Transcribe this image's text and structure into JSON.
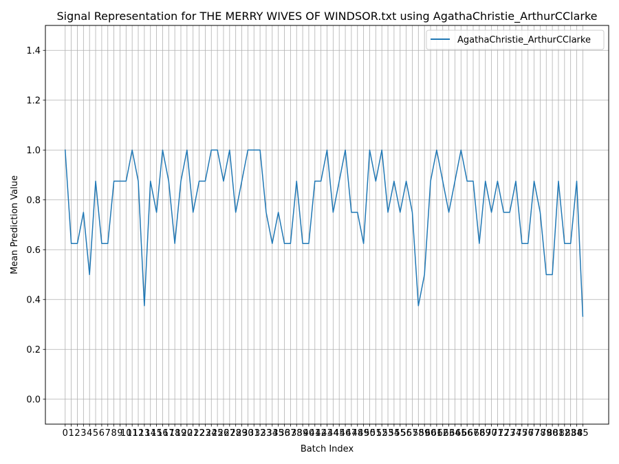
{
  "chart_data": {
    "type": "line",
    "title": "Signal Representation for THE MERRY WIVES OF WINDSOR.txt using AgathaChristie_ArthurCClarke",
    "xlabel": "Batch Index",
    "ylabel": "Mean Prediction Value",
    "xlim": [
      -3.25,
      89.25
    ],
    "ylim": [
      -0.1,
      1.5
    ],
    "yticks": [
      0.0,
      0.2,
      0.4,
      0.6,
      0.8,
      1.0,
      1.2,
      1.4
    ],
    "ytick_labels": [
      "0.0",
      "0.2",
      "0.4",
      "0.6",
      "0.8",
      "1.0",
      "1.2",
      "1.4"
    ],
    "grid": true,
    "legend_position": "upper-right",
    "series": [
      {
        "name": "AgathaChristie_ArthurCClarke",
        "color": "#1f77b4",
        "x": [
          0,
          1,
          2,
          3,
          4,
          5,
          6,
          7,
          8,
          9,
          10,
          11,
          12,
          13,
          14,
          15,
          16,
          17,
          18,
          19,
          20,
          21,
          22,
          23,
          24,
          25,
          26,
          27,
          28,
          29,
          30,
          31,
          32,
          33,
          34,
          35,
          36,
          37,
          38,
          39,
          40,
          41,
          42,
          43,
          44,
          45,
          46,
          47,
          48,
          49,
          50,
          51,
          52,
          53,
          54,
          55,
          56,
          57,
          58,
          59,
          60,
          61,
          62,
          63,
          64,
          65,
          66,
          67,
          68,
          69,
          70,
          71,
          72,
          73,
          74,
          75,
          76,
          77,
          78,
          79,
          80,
          81,
          82,
          83,
          84,
          85
        ],
        "y": [
          1.0,
          0.625,
          0.625,
          0.75,
          0.5,
          0.875,
          0.625,
          0.625,
          0.875,
          0.875,
          0.875,
          1.0,
          0.875,
          0.375,
          0.875,
          0.75,
          1.0,
          0.875,
          0.625,
          0.875,
          1.0,
          0.75,
          0.875,
          0.875,
          1.0,
          1.0,
          0.875,
          1.0,
          0.75,
          0.875,
          1.0,
          1.0,
          1.0,
          0.75,
          0.625,
          0.75,
          0.625,
          0.625,
          0.875,
          0.625,
          0.625,
          0.875,
          0.875,
          1.0,
          0.75,
          0.875,
          1.0,
          0.75,
          0.75,
          0.625,
          1.0,
          0.875,
          1.0,
          0.75,
          0.875,
          0.75,
          0.875,
          0.75,
          0.375,
          0.5,
          0.875,
          1.0,
          0.875,
          0.75,
          0.875,
          1.0,
          0.875,
          0.875,
          0.625,
          0.875,
          0.75,
          0.875,
          0.75,
          0.75,
          0.875,
          0.625,
          0.625,
          0.875,
          0.75,
          0.5,
          0.5,
          0.875,
          0.625,
          0.625,
          0.875,
          0.333
        ]
      }
    ]
  }
}
